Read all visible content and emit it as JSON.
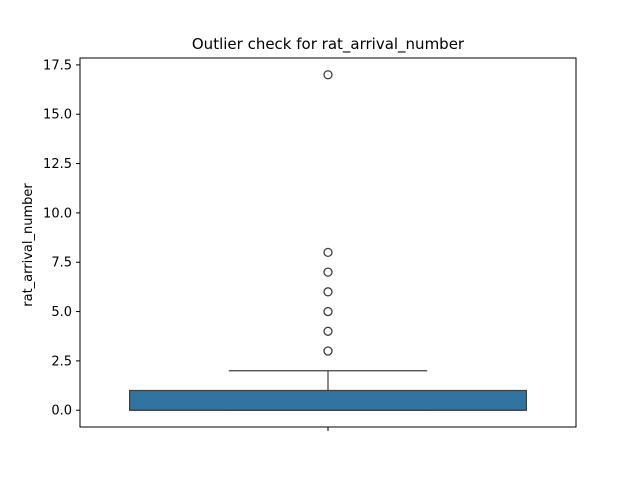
{
  "chart_data": {
    "type": "box",
    "title": "Outlier check for rat_arrival_number",
    "xlabel": "",
    "ylabel": "rat_arrival_number",
    "ylim": [
      -0.85,
      17.85
    ],
    "yticks": [
      0.0,
      2.5,
      5.0,
      7.5,
      10.0,
      12.5,
      15.0,
      17.5
    ],
    "ytick_labels": [
      "0.0",
      "2.5",
      "5.0",
      "7.5",
      "10.0",
      "12.5",
      "15.0",
      "17.5"
    ],
    "grid": false,
    "box": {
      "q1": 0,
      "median": 0,
      "q3": 1,
      "whisker_low": 0,
      "whisker_high": 2,
      "color": "#3274a1",
      "edge_color": "#3f3f3f"
    },
    "outliers": [
      3,
      4,
      5,
      6,
      7,
      8,
      17
    ]
  }
}
